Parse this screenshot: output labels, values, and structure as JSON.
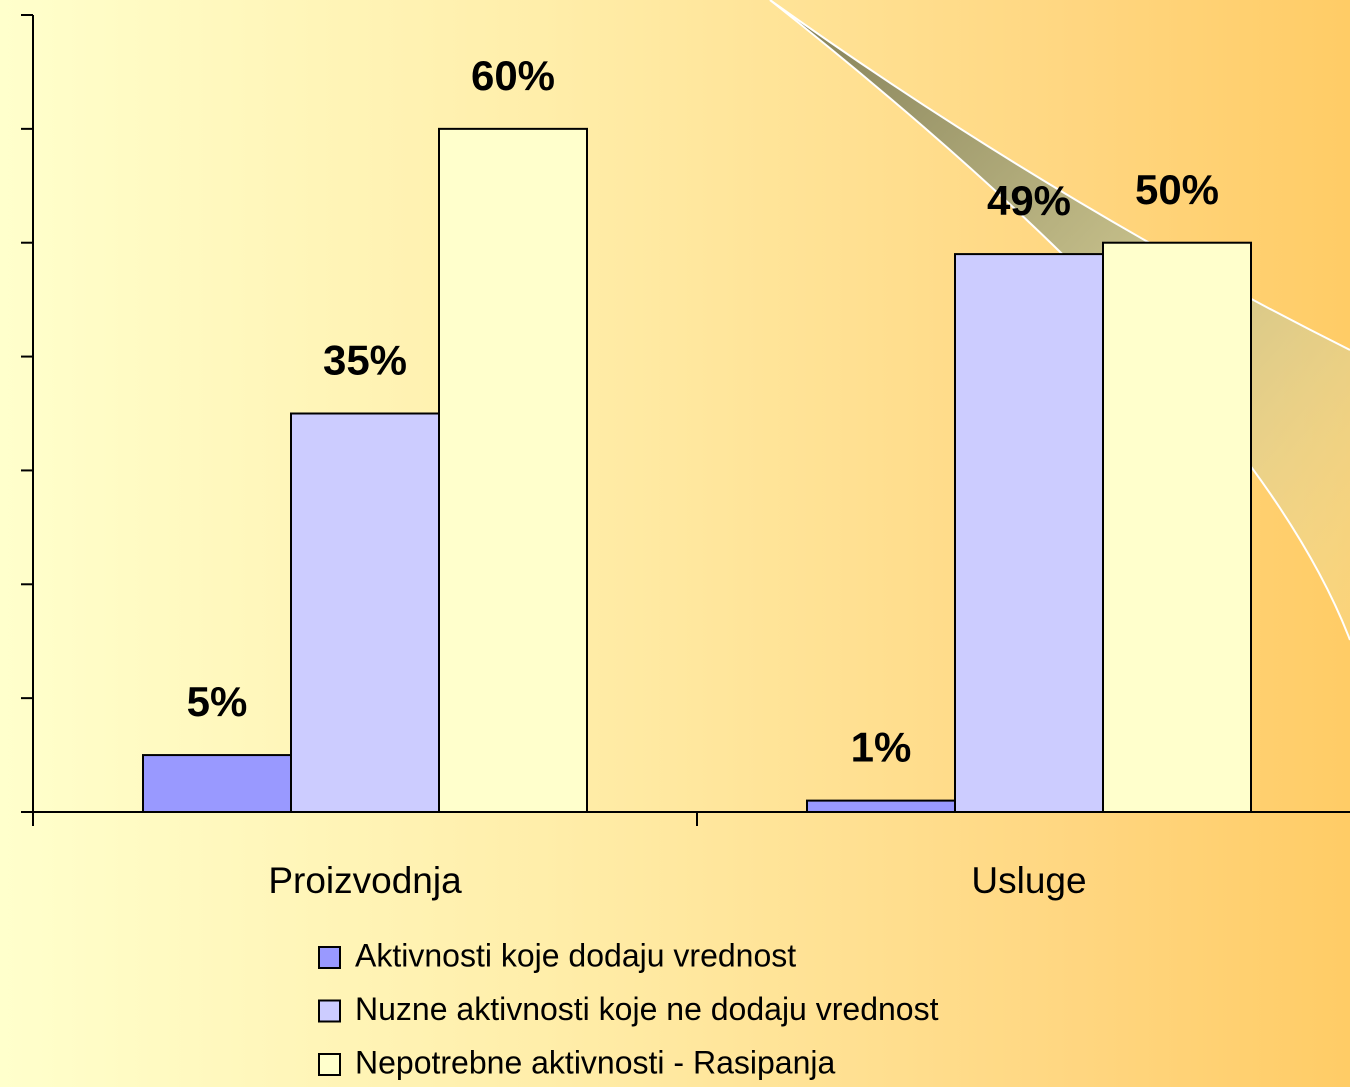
{
  "chart_data": {
    "type": "bar",
    "categories": [
      "Proizvodnja",
      "Usluge"
    ],
    "series": [
      {
        "name": "Aktivnosti koje dodaju vrednost",
        "color": "#9999ff",
        "values": [
          5,
          1
        ],
        "value_labels": [
          "5%",
          "1%"
        ]
      },
      {
        "name": "Nuzne aktivnosti koje ne dodaju vrednost",
        "color": "#ccccff",
        "values": [
          35,
          49
        ],
        "value_labels": [
          "35%",
          "49%"
        ]
      },
      {
        "name": "Nepotrebne aktivnosti - Rasipanja",
        "color": "#ffffcc",
        "values": [
          60,
          50
        ],
        "value_labels": [
          "60%",
          "50%"
        ]
      }
    ],
    "ylim": [
      0,
      70
    ],
    "yticks": [
      0,
      10,
      20,
      30,
      40,
      50,
      60,
      70
    ],
    "legend": "bottom"
  }
}
